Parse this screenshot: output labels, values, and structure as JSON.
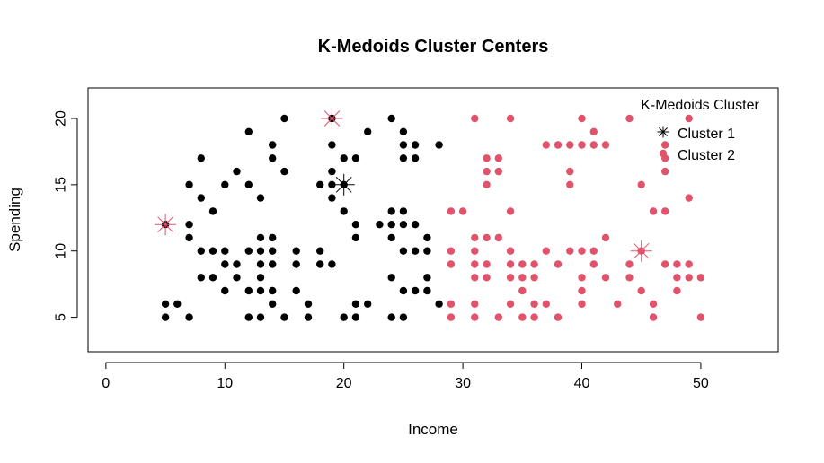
{
  "chart_data": {
    "type": "scatter",
    "title": "K-Medoids Cluster Centers",
    "xlabel": "Income",
    "ylabel": "Spending",
    "xlim": [
      -1.5,
      56.5
    ],
    "ylim": [
      2.4,
      22.3
    ],
    "xticks": [
      0,
      10,
      20,
      30,
      40,
      50
    ],
    "yticks": [
      5,
      10,
      15,
      20
    ],
    "grid": false,
    "legend": {
      "title": "K-Medoids Cluster",
      "position": "top-right",
      "entries": [
        "Cluster 1",
        "Cluster 2"
      ]
    },
    "colors": {
      "cluster1": "#000000",
      "cluster2": "#DF536B"
    },
    "series": [
      {
        "name": "Cluster 1",
        "points": [
          [
            5,
            12
          ],
          [
            5,
            6
          ],
          [
            5,
            5
          ],
          [
            6,
            6
          ],
          [
            7,
            15
          ],
          [
            7,
            12
          ],
          [
            7,
            11
          ],
          [
            7,
            5
          ],
          [
            8,
            17
          ],
          [
            8,
            14
          ],
          [
            8,
            10
          ],
          [
            8,
            8
          ],
          [
            9,
            13
          ],
          [
            9,
            10
          ],
          [
            9,
            8
          ],
          [
            10,
            15
          ],
          [
            10,
            10
          ],
          [
            10,
            9
          ],
          [
            10,
            7
          ],
          [
            11,
            16
          ],
          [
            11,
            9
          ],
          [
            11,
            8
          ],
          [
            12,
            19
          ],
          [
            12,
            15
          ],
          [
            12,
            10
          ],
          [
            12,
            7
          ],
          [
            12,
            5
          ],
          [
            13,
            14
          ],
          [
            13,
            11
          ],
          [
            13,
            10
          ],
          [
            13,
            9
          ],
          [
            13,
            8
          ],
          [
            13,
            7
          ],
          [
            13,
            5
          ],
          [
            14,
            18
          ],
          [
            14,
            17
          ],
          [
            14,
            11
          ],
          [
            14,
            10
          ],
          [
            14,
            9
          ],
          [
            14,
            7
          ],
          [
            14,
            6
          ],
          [
            15,
            20
          ],
          [
            15,
            16
          ],
          [
            15,
            5
          ],
          [
            16,
            10
          ],
          [
            16,
            9
          ],
          [
            16,
            7
          ],
          [
            17,
            6
          ],
          [
            17,
            5
          ],
          [
            18,
            15
          ],
          [
            18,
            10
          ],
          [
            18,
            9
          ],
          [
            19,
            20
          ],
          [
            19,
            18
          ],
          [
            19,
            16
          ],
          [
            19,
            15
          ],
          [
            19,
            14
          ],
          [
            19,
            9
          ],
          [
            20,
            17
          ],
          [
            20,
            15
          ],
          [
            20,
            13
          ],
          [
            20,
            5
          ],
          [
            21,
            17
          ],
          [
            21,
            12
          ],
          [
            21,
            11
          ],
          [
            21,
            6
          ],
          [
            21,
            5
          ],
          [
            22,
            19
          ],
          [
            22,
            6
          ],
          [
            23,
            12
          ],
          [
            24,
            20
          ],
          [
            24,
            13
          ],
          [
            24,
            12
          ],
          [
            24,
            11
          ],
          [
            24,
            8
          ],
          [
            24,
            5
          ],
          [
            25,
            19
          ],
          [
            25,
            18
          ],
          [
            25,
            17
          ],
          [
            25,
            13
          ],
          [
            25,
            12
          ],
          [
            25,
            10
          ],
          [
            25,
            7
          ],
          [
            25,
            5
          ],
          [
            26,
            18
          ],
          [
            26,
            17
          ],
          [
            26,
            12
          ],
          [
            26,
            10
          ],
          [
            26,
            7
          ],
          [
            27,
            11
          ],
          [
            27,
            10
          ],
          [
            27,
            8
          ],
          [
            27,
            7
          ],
          [
            28,
            18
          ],
          [
            28,
            6
          ]
        ]
      },
      {
        "name": "Cluster 2",
        "points": [
          [
            29,
            13
          ],
          [
            29,
            10
          ],
          [
            29,
            9
          ],
          [
            29,
            6
          ],
          [
            29,
            5
          ],
          [
            30,
            13
          ],
          [
            31,
            20
          ],
          [
            31,
            11
          ],
          [
            31,
            10
          ],
          [
            31,
            9
          ],
          [
            31,
            8
          ],
          [
            31,
            6
          ],
          [
            31,
            5
          ],
          [
            32,
            17
          ],
          [
            32,
            16
          ],
          [
            32,
            15
          ],
          [
            32,
            11
          ],
          [
            32,
            9
          ],
          [
            32,
            8
          ],
          [
            33,
            17
          ],
          [
            33,
            16
          ],
          [
            33,
            11
          ],
          [
            33,
            5
          ],
          [
            34,
            20
          ],
          [
            34,
            13
          ],
          [
            34,
            10
          ],
          [
            34,
            9
          ],
          [
            34,
            8
          ],
          [
            34,
            6
          ],
          [
            35,
            9
          ],
          [
            35,
            8
          ],
          [
            35,
            7
          ],
          [
            35,
            5
          ],
          [
            36,
            9
          ],
          [
            36,
            8
          ],
          [
            36,
            6
          ],
          [
            36,
            5
          ],
          [
            37,
            18
          ],
          [
            37,
            10
          ],
          [
            37,
            6
          ],
          [
            38,
            18
          ],
          [
            38,
            9
          ],
          [
            38,
            5
          ],
          [
            39,
            18
          ],
          [
            39,
            16
          ],
          [
            39,
            15
          ],
          [
            39,
            10
          ],
          [
            40,
            20
          ],
          [
            40,
            18
          ],
          [
            40,
            10
          ],
          [
            40,
            8
          ],
          [
            40,
            7
          ],
          [
            40,
            6
          ],
          [
            41,
            19
          ],
          [
            41,
            18
          ],
          [
            41,
            10
          ],
          [
            41,
            9
          ],
          [
            42,
            18
          ],
          [
            42,
            11
          ],
          [
            42,
            8
          ],
          [
            43,
            6
          ],
          [
            44,
            20
          ],
          [
            44,
            9
          ],
          [
            44,
            8
          ],
          [
            45,
            15
          ],
          [
            45,
            10
          ],
          [
            45,
            7
          ],
          [
            46,
            13
          ],
          [
            46,
            6
          ],
          [
            46,
            5
          ],
          [
            47,
            18
          ],
          [
            47,
            17
          ],
          [
            47,
            16
          ],
          [
            47,
            13
          ],
          [
            47,
            9
          ],
          [
            48,
            9
          ],
          [
            48,
            8
          ],
          [
            48,
            7
          ],
          [
            49,
            20
          ],
          [
            49,
            14
          ],
          [
            49,
            9
          ],
          [
            49,
            8
          ],
          [
            50,
            8
          ],
          [
            50,
            5
          ]
        ]
      }
    ],
    "medoids": [
      {
        "cluster": 1,
        "points": [
          [
            20,
            15
          ]
        ]
      },
      {
        "cluster": 2,
        "points": [
          [
            5,
            12
          ],
          [
            19,
            20
          ],
          [
            45,
            10
          ]
        ]
      }
    ]
  }
}
